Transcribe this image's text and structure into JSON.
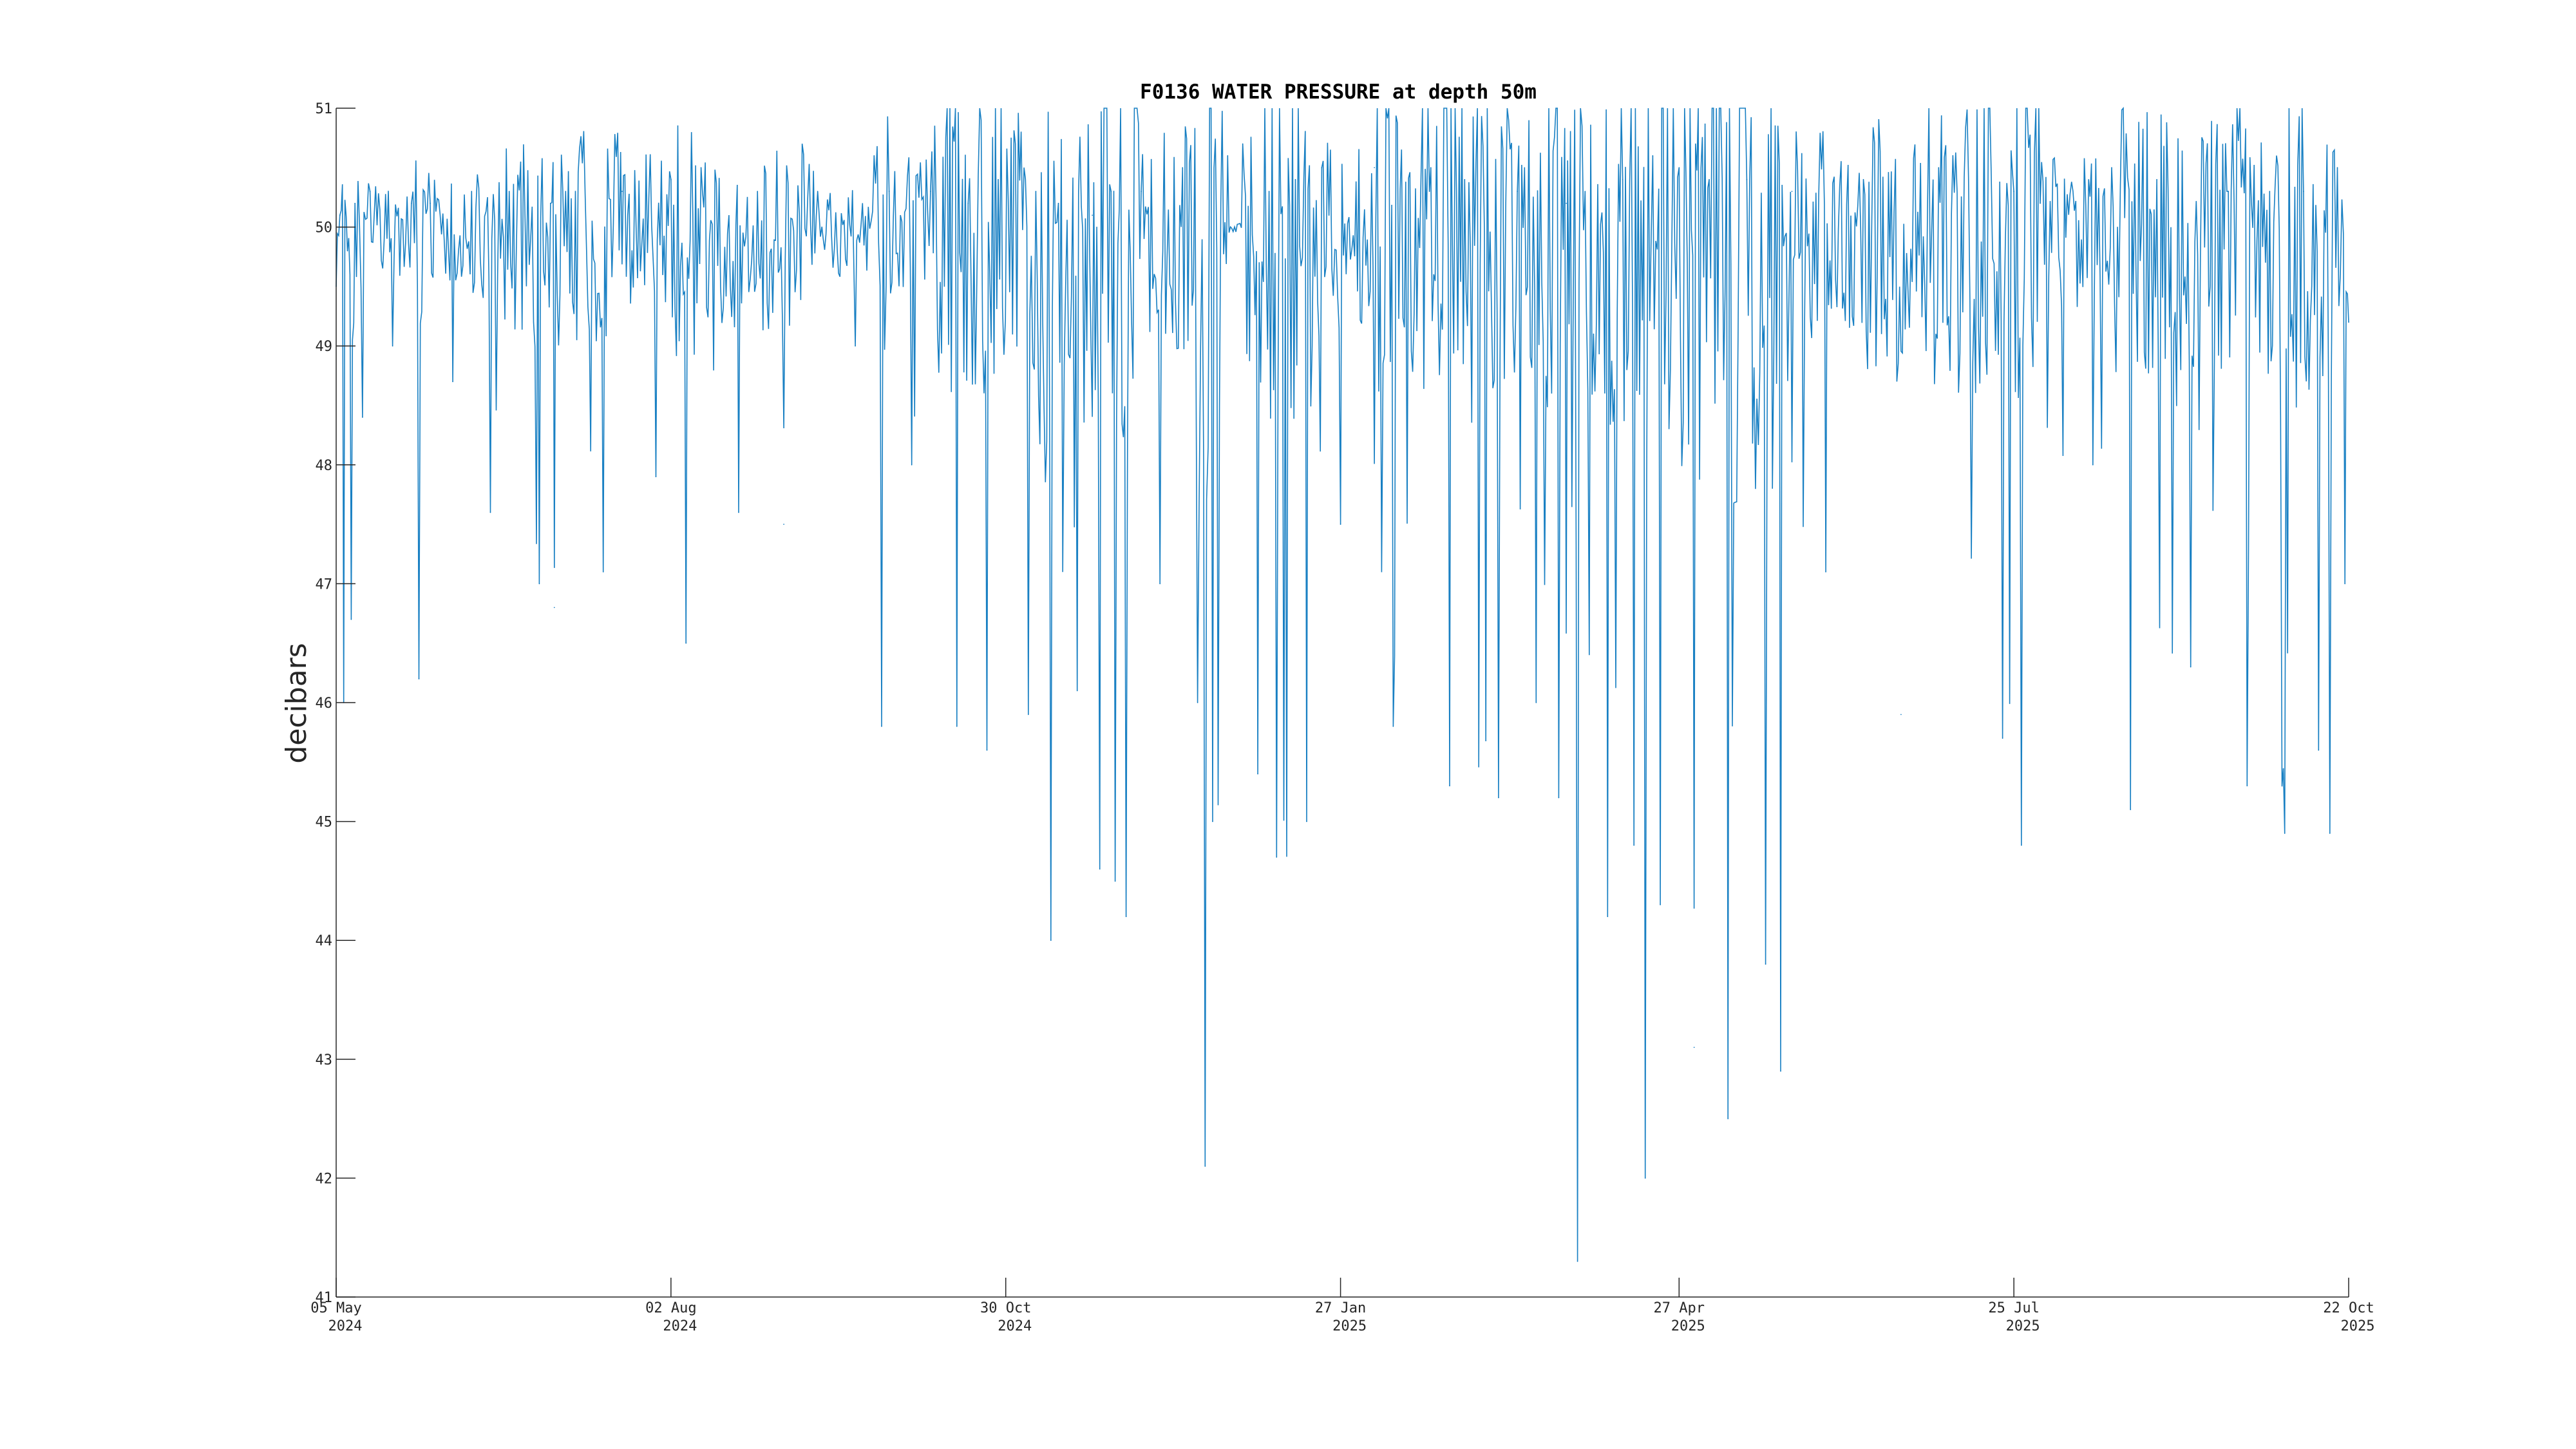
{
  "chart_data": {
    "type": "line",
    "title": "F0136 WATER PRESSURE at depth 50m",
    "xlabel": "",
    "ylabel": "decibars",
    "ylim": [
      41,
      51
    ],
    "yticks": [
      41,
      42,
      43,
      44,
      45,
      46,
      47,
      48,
      49,
      50,
      51
    ],
    "xlim": [
      "2024-05-05",
      "2025-10-22"
    ],
    "xticks": [
      {
        "date": "2024-05-05",
        "label_line1": "05 May",
        "label_line2": "2024"
      },
      {
        "date": "2024-08-02",
        "label_line1": "02 Aug",
        "label_line2": "2024"
      },
      {
        "date": "2024-10-30",
        "label_line1": "30 Oct",
        "label_line2": "2024"
      },
      {
        "date": "2025-01-27",
        "label_line1": "27 Jan",
        "label_line2": "2025"
      },
      {
        "date": "2025-04-27",
        "label_line1": "27 Apr",
        "label_line2": "2025"
      },
      {
        "date": "2025-07-25",
        "label_line1": "25 Jul",
        "label_line2": "2025"
      },
      {
        "date": "2025-10-22",
        "label_line1": "22 Oct",
        "label_line2": "2025"
      }
    ],
    "grid": false,
    "series": [
      {
        "color": "#0072BD",
        "points": [
          [
            "2024-05-05",
            49.5
          ],
          [
            "2024-05-06",
            50.1
          ],
          [
            "2024-05-07",
            46.0
          ],
          [
            "2024-05-08",
            49.8
          ],
          [
            "2024-05-09",
            46.7
          ],
          [
            "2024-05-10",
            50.2
          ],
          [
            "2024-05-12",
            48.4
          ],
          [
            "2024-05-14",
            50.3
          ],
          [
            "2024-05-20",
            49.0
          ],
          [
            "2024-05-25",
            50.2
          ],
          [
            "2024-05-27",
            46.2
          ],
          [
            "2024-05-30",
            50.2
          ],
          [
            "2024-06-05",
            48.7
          ],
          [
            "2024-06-10",
            50.3
          ],
          [
            "2024-06-15",
            47.6
          ],
          [
            "2024-06-20",
            50.3
          ],
          [
            "2024-06-28",
            47.0
          ],
          [
            "2024-07-01",
            50.2
          ],
          [
            "2024-07-02",
            46.8
          ],
          [
            "2024-07-05",
            50.3
          ],
          [
            "2024-07-15",
            47.1
          ],
          [
            "2024-07-20",
            50.3
          ],
          [
            "2024-07-29",
            47.9
          ],
          [
            "2024-08-02",
            50.4
          ],
          [
            "2024-08-06",
            46.5
          ],
          [
            "2024-08-10",
            50.5
          ],
          [
            "2024-08-20",
            47.6
          ],
          [
            "2024-08-25",
            50.3
          ],
          [
            "2024-09-01",
            47.5
          ],
          [
            "2024-09-10",
            50.3
          ],
          [
            "2024-09-20",
            49.0
          ],
          [
            "2024-09-25",
            50.6
          ],
          [
            "2024-09-27",
            45.8
          ],
          [
            "2024-09-29",
            50.3
          ],
          [
            "2024-10-05",
            48.0
          ],
          [
            "2024-10-10",
            50.3
          ],
          [
            "2024-10-17",
            45.8
          ],
          [
            "2024-10-20",
            50.2
          ],
          [
            "2024-10-25",
            45.6
          ],
          [
            "2024-10-28",
            50.4
          ],
          [
            "2024-11-05",
            45.9
          ],
          [
            "2024-11-07",
            50.3
          ],
          [
            "2024-11-11",
            44.0
          ],
          [
            "2024-11-13",
            50.2
          ],
          [
            "2024-11-18",
            46.1
          ],
          [
            "2024-11-22",
            50.1
          ],
          [
            "2024-11-24",
            44.6
          ],
          [
            "2024-11-27",
            50.3
          ],
          [
            "2024-12-01",
            44.2
          ],
          [
            "2024-12-05",
            50.3
          ],
          [
            "2024-12-10",
            47.0
          ],
          [
            "2024-12-16",
            50.5
          ],
          [
            "2024-12-20",
            46.0
          ],
          [
            "2024-12-22",
            42.1
          ],
          [
            "2024-12-24",
            45.0
          ],
          [
            "2024-12-28",
            50.6
          ],
          [
            "2025-01-01",
            50.7
          ],
          [
            "2025-01-05",
            45.4
          ],
          [
            "2025-01-08",
            50.3
          ],
          [
            "2025-01-10",
            44.7
          ],
          [
            "2025-01-15",
            50.4
          ],
          [
            "2025-01-18",
            45.0
          ],
          [
            "2025-01-22",
            50.5
          ],
          [
            "2025-01-27",
            47.5
          ],
          [
            "2025-02-05",
            50.5
          ],
          [
            "2025-02-10",
            45.8
          ],
          [
            "2025-02-20",
            50.5
          ],
          [
            "2025-02-25",
            45.3
          ],
          [
            "2025-03-01",
            50.4
          ],
          [
            "2025-03-10",
            45.2
          ],
          [
            "2025-03-15",
            50.3
          ],
          [
            "2025-03-20",
            46.0
          ],
          [
            "2025-03-26",
            45.2
          ],
          [
            "2025-03-28",
            50.2
          ],
          [
            "2025-03-31",
            41.3
          ],
          [
            "2025-04-02",
            50.3
          ],
          [
            "2025-04-08",
            44.2
          ],
          [
            "2025-04-12",
            50.4
          ],
          [
            "2025-04-15",
            44.8
          ],
          [
            "2025-04-18",
            42.0
          ],
          [
            "2025-04-20",
            50.6
          ],
          [
            "2025-04-22",
            44.3
          ],
          [
            "2025-04-27",
            50.5
          ],
          [
            "2025-05-01",
            43.1
          ],
          [
            "2025-05-05",
            50.4
          ],
          [
            "2025-05-10",
            42.5
          ],
          [
            "2025-05-15",
            50.4
          ],
          [
            "2025-05-20",
            43.8
          ],
          [
            "2025-05-24",
            42.9
          ],
          [
            "2025-05-27",
            50.3
          ],
          [
            "2025-06-05",
            47.1
          ],
          [
            "2025-06-15",
            50.4
          ],
          [
            "2025-06-25",
            45.9
          ],
          [
            "2025-07-05",
            50.5
          ],
          [
            "2025-07-22",
            45.7
          ],
          [
            "2025-07-25",
            50.3
          ],
          [
            "2025-07-27",
            44.8
          ],
          [
            "2025-08-01",
            50.2
          ],
          [
            "2025-08-15",
            48.0
          ],
          [
            "2025-08-20",
            50.5
          ],
          [
            "2025-08-25",
            45.1
          ],
          [
            "2025-09-01",
            50.4
          ],
          [
            "2025-09-10",
            46.3
          ],
          [
            "2025-09-20",
            50.3
          ],
          [
            "2025-09-25",
            45.3
          ],
          [
            "2025-10-01",
            50.3
          ],
          [
            "2025-10-05",
            44.9
          ],
          [
            "2025-10-10",
            50.3
          ],
          [
            "2025-10-14",
            45.6
          ],
          [
            "2025-10-17",
            44.9
          ],
          [
            "2025-10-19",
            50.5
          ],
          [
            "2025-10-21",
            47.0
          ],
          [
            "2025-10-22",
            49.2
          ]
        ]
      }
    ]
  }
}
